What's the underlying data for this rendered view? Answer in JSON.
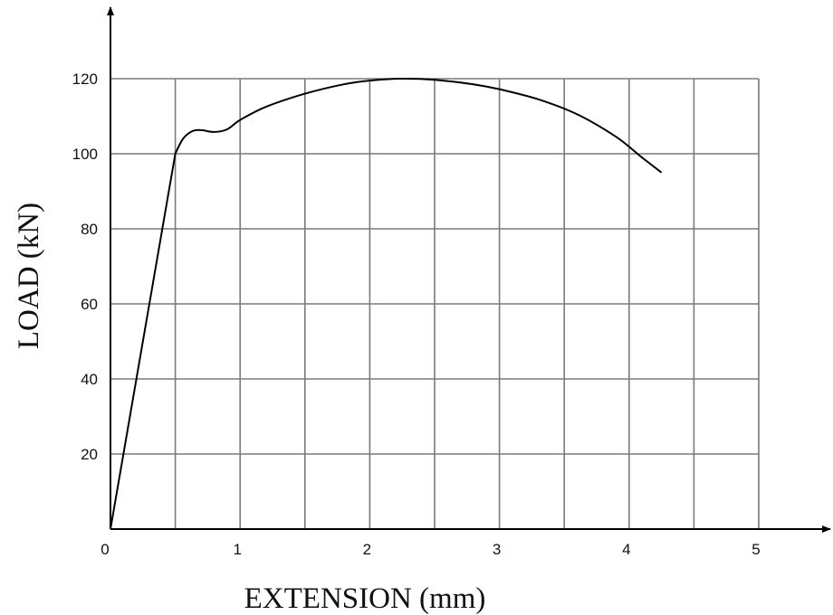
{
  "chart_data": {
    "type": "line",
    "title": "",
    "xlabel": "EXTENSION (mm)",
    "ylabel": "LOAD (kN)",
    "xlim": [
      0,
      5
    ],
    "ylim": [
      0,
      120
    ],
    "grid": true,
    "x_ticks": [
      "0",
      "1",
      "2",
      "3",
      "4",
      "5"
    ],
    "y_ticks": [
      "20",
      "40",
      "60",
      "80",
      "100",
      "120"
    ],
    "series": [
      {
        "x": [
          0,
          0.5,
          0.56,
          0.63,
          0.7,
          0.8,
          0.9,
          1.0,
          1.2,
          1.5,
          1.8,
          2.0,
          2.25,
          2.5,
          2.8,
          3.0,
          3.3,
          3.6,
          3.9,
          4.1,
          4.25
        ],
        "y": [
          0,
          100,
          104,
          106,
          106.3,
          105.8,
          106.5,
          109,
          112.5,
          116,
          118.5,
          119.5,
          120,
          119.7,
          118.5,
          117.2,
          114.5,
          110.5,
          104.5,
          99,
          95
        ]
      }
    ]
  },
  "colors": {
    "grid": "#7a7a7a",
    "axis": "#000000",
    "curve": "#000000"
  }
}
